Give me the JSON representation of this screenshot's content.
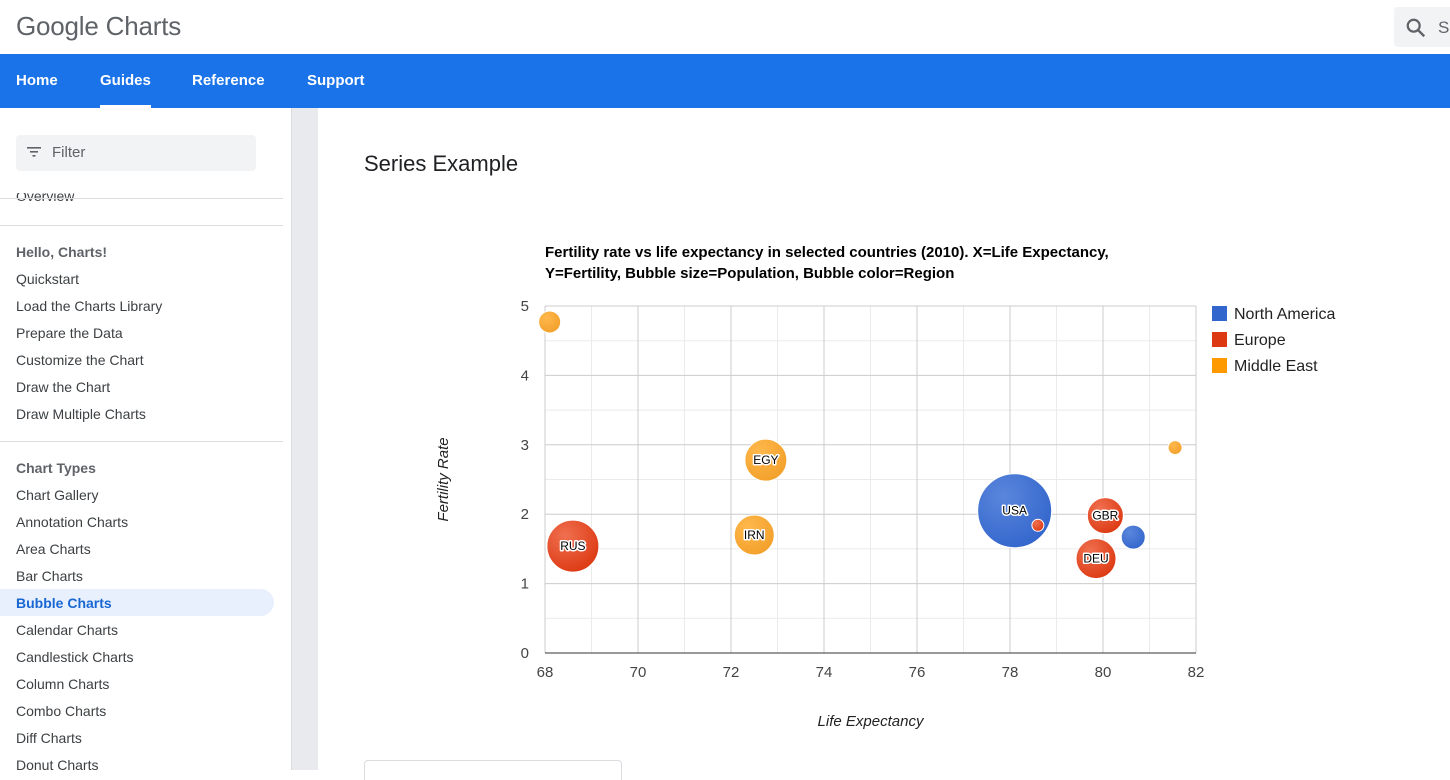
{
  "header": {
    "logo": "Google Charts",
    "search_placeholder": "S"
  },
  "nav": {
    "items": [
      "Home",
      "Guides",
      "Reference",
      "Support"
    ],
    "active": "Guides"
  },
  "sidebar": {
    "filter_placeholder": "Filter",
    "overview": "Overview",
    "section1_title": "Hello, Charts!",
    "section1_items": [
      "Quickstart",
      "Load the Charts Library",
      "Prepare the Data",
      "Customize the Chart",
      "Draw the Chart",
      "Draw Multiple Charts"
    ],
    "section2_title": "Chart Types",
    "section2_items": [
      "Chart Gallery",
      "Annotation Charts",
      "Area Charts",
      "Bar Charts",
      "Bubble Charts",
      "Calendar Charts",
      "Candlestick Charts",
      "Column Charts",
      "Combo Charts",
      "Diff Charts",
      "Donut Charts"
    ],
    "active_item": "Bubble Charts"
  },
  "main": {
    "page_title": "Series Example"
  },
  "chart_data": {
    "type": "bubble",
    "title": "Fertility rate vs life expectancy in selected countries (2010). X=Life Expectancy, Y=Fertility, Bubble size=Population, Bubble color=Region",
    "title_lines": [
      "Fertility rate vs life expectancy in selected countries (2010). X=Life Expectancy,",
      "Y=Fertility, Bubble size=Population, Bubble color=Region"
    ],
    "xlabel": "Life Expectancy",
    "ylabel": "Fertility Rate",
    "xlim": [
      68,
      82
    ],
    "ylim": [
      0,
      5
    ],
    "x_ticks": [
      68,
      70,
      72,
      74,
      76,
      78,
      80,
      82
    ],
    "y_ticks": [
      0,
      1,
      2,
      3,
      4,
      5
    ],
    "grid": true,
    "legend_position": "right",
    "series": [
      {
        "name": "North America",
        "color": "#3366cc"
      },
      {
        "name": "Europe",
        "color": "#dc3912"
      },
      {
        "name": "Middle East",
        "color": "#ff9900"
      }
    ],
    "points": [
      {
        "label": "",
        "x": 68.1,
        "y": 4.77,
        "series": "Middle East",
        "size": 11
      },
      {
        "label": "EGY",
        "x": 72.75,
        "y": 2.78,
        "series": "Middle East",
        "size": 21
      },
      {
        "label": "IRN",
        "x": 72.5,
        "y": 1.7,
        "series": "Middle East",
        "size": 20
      },
      {
        "label": "",
        "x": 81.55,
        "y": 2.96,
        "series": "Middle East",
        "size": 7
      },
      {
        "label": "RUS",
        "x": 68.6,
        "y": 1.54,
        "series": "Europe",
        "size": 26
      },
      {
        "label": "GBR",
        "x": 80.05,
        "y": 1.98,
        "series": "Europe",
        "size": 18
      },
      {
        "label": "DEU",
        "x": 79.85,
        "y": 1.36,
        "series": "Europe",
        "size": 20
      },
      {
        "label": "",
        "x": 78.6,
        "y": 1.84,
        "series": "Europe",
        "size": 6
      },
      {
        "label": "USA",
        "x": 78.1,
        "y": 2.05,
        "series": "North America",
        "size": 37
      },
      {
        "label": "",
        "x": 80.65,
        "y": 1.67,
        "series": "North America",
        "size": 12
      }
    ]
  }
}
